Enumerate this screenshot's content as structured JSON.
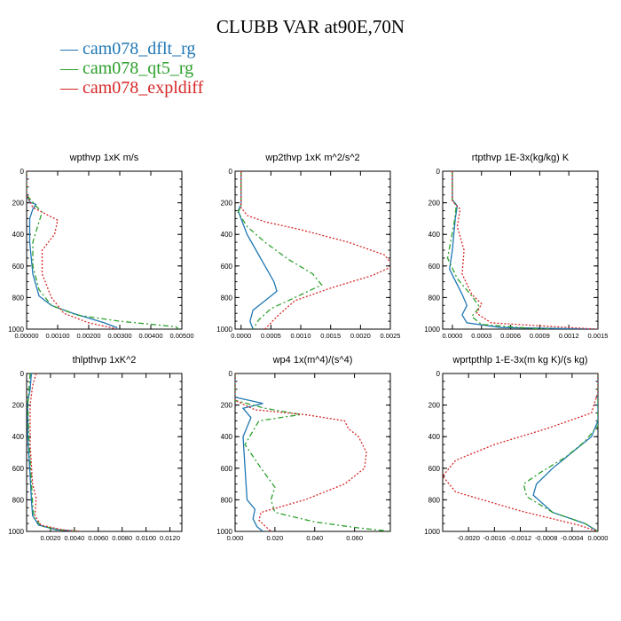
{
  "figure_title": "CLUBB VAR at90E,70N",
  "legend": [
    {
      "label": "cam078_dflt_rg",
      "color": "#1f77b4",
      "dash": "solid"
    },
    {
      "label": "cam078_qt5_rg",
      "color": "#2ca02c",
      "dash": "dashdot"
    },
    {
      "label": "cam078_expldiff",
      "color": "#d62728",
      "dash": "dotted"
    }
  ],
  "chart_data": [
    {
      "type": "line",
      "title": "wpthvp  1xK m/s",
      "xlim": [
        0.0,
        0.005
      ],
      "ylim": [
        0,
        1000
      ],
      "xticks": [
        "0.00000",
        "0.00100",
        "0.00200",
        "0.00300",
        "0.00400",
        "0.00500"
      ],
      "xtick_values": [
        0,
        0.001,
        0.002,
        0.003,
        0.004,
        0.005
      ],
      "yticks": [
        "0",
        "200",
        "400",
        "600",
        "800",
        "1000"
      ],
      "ytick_values": [
        0,
        200,
        400,
        600,
        800,
        1000
      ],
      "series": [
        {
          "name": "cam078_dflt_rg",
          "x": [
            0,
            0,
            0.0001,
            0.0003,
            0.0002,
            0.0001,
            0.0001,
            0.0002,
            0.0004,
            0.0008,
            0.0015,
            0.0025,
            0.0029,
            0.0029
          ],
          "y": [
            0,
            150,
            195,
            210,
            240,
            300,
            450,
            650,
            790,
            850,
            900,
            960,
            990,
            1000
          ]
        },
        {
          "name": "cam078_qt5_rg",
          "x": [
            0,
            0,
            0.0003,
            0.0005,
            0.0004,
            0.0002,
            0.0002,
            0.0004,
            0.0008,
            0.0016,
            0.003,
            0.0048,
            0.0049
          ],
          "y": [
            0,
            150,
            220,
            260,
            320,
            450,
            600,
            750,
            850,
            910,
            950,
            985,
            1000
          ]
        },
        {
          "name": "cam078_expldiff",
          "x": [
            0,
            0,
            0.0002,
            0.0007,
            0.001,
            0.0009,
            0.0005,
            0.0005,
            0.0008,
            0.0012,
            0.002,
            0.0027,
            0.0029
          ],
          "y": [
            0,
            150,
            230,
            280,
            310,
            400,
            500,
            650,
            800,
            900,
            960,
            990,
            1000
          ]
        }
      ]
    },
    {
      "type": "line",
      "title": "wp2thvp  1xK m^2/s^2",
      "xlim": [
        -0.0001,
        0.0025
      ],
      "ylim": [
        0,
        1000
      ],
      "xticks": [
        "0.0000",
        "0.0005",
        "0.0010",
        "0.0015",
        "0.0020",
        "0.0025"
      ],
      "xtick_values": [
        0,
        0.0005,
        0.001,
        0.0015,
        0.002,
        0.0025
      ],
      "yticks": [
        "0",
        "200",
        "400",
        "600",
        "800",
        "1000"
      ],
      "ytick_values": [
        0,
        200,
        400,
        600,
        800,
        1000
      ],
      "series": [
        {
          "name": "cam078_dflt_rg",
          "x": [
            0,
            0,
            -5e-05,
            0,
            0.0001,
            0.00025,
            0.0004,
            0.00055,
            0.0006,
            0.0004,
            0.0002,
            0.00015,
            0.0002
          ],
          "y": [
            0,
            210,
            250,
            300,
            400,
            500,
            600,
            700,
            760,
            820,
            880,
            950,
            1000
          ]
        },
        {
          "name": "cam078_qt5_rg",
          "x": [
            0,
            0,
            -5e-05,
            0.0001,
            0.0004,
            0.0008,
            0.0012,
            0.00135,
            0.0009,
            0.0005,
            0.0003,
            0.0002
          ],
          "y": [
            0,
            220,
            260,
            350,
            450,
            560,
            650,
            720,
            800,
            870,
            940,
            1000
          ]
        },
        {
          "name": "cam078_expldiff",
          "x": [
            0,
            0,
            0.0001,
            0.0004,
            0.001,
            0.0018,
            0.0024,
            0.00255,
            0.0022,
            0.0015,
            0.0009,
            0.0006,
            0.0004
          ],
          "y": [
            0,
            230,
            280,
            320,
            370,
            450,
            530,
            600,
            660,
            740,
            820,
            920,
            1000
          ]
        }
      ]
    },
    {
      "type": "line",
      "title": "rtpthvp  1E-3x(kg/kg) K",
      "xlim": [
        -0.0001,
        0.0015
      ],
      "ylim": [
        0,
        1000
      ],
      "xticks": [
        "0.0000",
        "0.0003",
        "0.0006",
        "0.0009",
        "0.0012",
        "0.0015"
      ],
      "xtick_values": [
        0,
        0.0003,
        0.0006,
        0.0009,
        0.0012,
        0.0015
      ],
      "yticks": [
        "0",
        "200",
        "400",
        "600",
        "800",
        "1000"
      ],
      "ytick_values": [
        0,
        200,
        400,
        600,
        800,
        1000
      ],
      "series": [
        {
          "name": "cam078_dflt_rg",
          "x": [
            0,
            0,
            5e-05,
            3e-05,
            0,
            -3e-05,
            0.0001,
            0.00015,
            0.0001,
            0.00015,
            0.0005,
            0.0015
          ],
          "y": [
            0,
            180,
            220,
            300,
            500,
            620,
            780,
            850,
            910,
            960,
            990,
            1000
          ]
        },
        {
          "name": "cam078_qt5_rg",
          "x": [
            0,
            0,
            4e-05,
            2e-05,
            -5e-05,
            5e-05,
            0.0002,
            0.00028,
            0.0002,
            0.0003,
            0.0008,
            0.001
          ],
          "y": [
            0,
            180,
            220,
            320,
            550,
            680,
            790,
            860,
            920,
            970,
            995,
            1000
          ]
        },
        {
          "name": "cam078_expldiff",
          "x": [
            0,
            0,
            8e-05,
            5e-05,
            0.00012,
            0.0001,
            0.0002,
            0.0003,
            0.00025,
            0.0004,
            0.0012,
            0.0015
          ],
          "y": [
            0,
            190,
            240,
            350,
            500,
            650,
            780,
            840,
            900,
            960,
            990,
            1000
          ]
        }
      ]
    },
    {
      "type": "line",
      "title": "thlpthvp  1xK^2",
      "xlim": [
        0.0,
        0.013
      ],
      "ylim": [
        0,
        1000
      ],
      "xticks": [
        "0.0020",
        "0.0040",
        "0.0060",
        "0.0080",
        "0.0100",
        "0.0120"
      ],
      "xtick_values": [
        0.002,
        0.004,
        0.006,
        0.008,
        0.01,
        0.012
      ],
      "yticks": [
        "0",
        "200",
        "400",
        "600",
        "800",
        "1000"
      ],
      "ytick_values": [
        0,
        200,
        400,
        600,
        800,
        1000
      ],
      "series": [
        {
          "name": "cam078_dflt_rg",
          "x": [
            0.0004,
            0.0003,
            0.0001,
            0.0001,
            0.0003,
            0.0004,
            0.0005,
            0.001,
            0.0025,
            0.0045
          ],
          "y": [
            0,
            100,
            180,
            400,
            650,
            800,
            900,
            960,
            990,
            1000
          ]
        },
        {
          "name": "cam078_qt5_rg",
          "x": [
            0.0003,
            0.0002,
            0.0001,
            0.0002,
            0.0004,
            0.0005,
            0.0006,
            0.0012,
            0.0028,
            0.0045
          ],
          "y": [
            0,
            100,
            200,
            420,
            680,
            820,
            910,
            965,
            990,
            1000
          ]
        },
        {
          "name": "cam078_expldiff",
          "x": [
            0.0008,
            0.0005,
            0.0003,
            0.0003,
            0.0005,
            0.0008,
            0.0007,
            0.0012,
            0.003,
            0.0045
          ],
          "y": [
            0,
            80,
            200,
            450,
            700,
            790,
            900,
            960,
            990,
            1000
          ]
        }
      ]
    },
    {
      "type": "line",
      "title": "wp4  1x(m^4)/(s^4)",
      "xlim": [
        0.0,
        0.078
      ],
      "ylim": [
        0,
        1000
      ],
      "xticks": [
        "0.000",
        "0.020",
        "0.040",
        "0.060"
      ],
      "xtick_values": [
        0,
        0.02,
        0.04,
        0.06
      ],
      "yticks": [
        "0",
        "200",
        "400",
        "600",
        "800",
        "1000"
      ],
      "ytick_values": [
        0,
        200,
        400,
        600,
        800,
        1000
      ],
      "series": [
        {
          "name": "cam078_dflt_rg",
          "x": [
            0,
            0,
            0.014,
            0.004,
            0.008,
            0.004,
            0.005,
            0.006,
            0.01,
            0.009,
            0.011,
            0.014
          ],
          "y": [
            0,
            150,
            190,
            220,
            280,
            400,
            600,
            800,
            860,
            920,
            970,
            1000
          ]
        },
        {
          "name": "cam078_qt5_rg",
          "x": [
            0,
            0,
            0.015,
            0.033,
            0.012,
            0.005,
            0.013,
            0.02,
            0.018,
            0.02,
            0.04,
            0.06,
            0.078
          ],
          "y": [
            0,
            170,
            220,
            260,
            300,
            450,
            600,
            720,
            800,
            880,
            940,
            975,
            1000
          ]
        },
        {
          "name": "cam078_expldiff",
          "x": [
            0,
            0,
            0.01,
            0.035,
            0.055,
            0.057,
            0.062,
            0.066,
            0.065,
            0.055,
            0.035,
            0.013,
            0.012,
            0.018
          ],
          "y": [
            0,
            170,
            230,
            260,
            300,
            350,
            400,
            500,
            600,
            700,
            800,
            880,
            930,
            1000
          ]
        }
      ]
    },
    {
      "type": "line",
      "title": "wprtpthlp  1-E-3x(m kg K)/(s kg)",
      "xlim": [
        -0.0024,
        0.0
      ],
      "ylim": [
        0,
        1000
      ],
      "xticks": [
        "-0.0020",
        "-0.0016",
        "-0.0012",
        "-0.0008",
        "-0.0004",
        "0.0000"
      ],
      "xtick_values": [
        -0.002,
        -0.0016,
        -0.0012,
        -0.0008,
        -0.0004,
        0
      ],
      "yticks": [
        "0",
        "200",
        "400",
        "600",
        "800",
        "1000"
      ],
      "ytick_values": [
        0,
        200,
        400,
        600,
        800,
        1000
      ],
      "series": [
        {
          "name": "cam078_dflt_rg",
          "x": [
            0,
            0,
            -0.0001,
            -0.0004,
            -0.0007,
            -0.00095,
            -0.001,
            -0.0007,
            -0.0002,
            0
          ],
          "y": [
            0,
            300,
            400,
            500,
            600,
            700,
            770,
            880,
            950,
            1000
          ]
        },
        {
          "name": "cam078_qt5_rg",
          "x": [
            0,
            0,
            -0.0002,
            -0.0005,
            -0.0009,
            -0.00115,
            -0.0011,
            -0.0007,
            -0.0002,
            0
          ],
          "y": [
            0,
            330,
            430,
            530,
            630,
            700,
            780,
            880,
            950,
            1000
          ]
        },
        {
          "name": "cam078_expldiff",
          "x": [
            0,
            0,
            -0.0001,
            -0.0008,
            -0.0016,
            -0.0022,
            -0.0024,
            -0.0022,
            -0.0012,
            -0.0003,
            0
          ],
          "y": [
            0,
            120,
            250,
            350,
            450,
            550,
            650,
            750,
            870,
            960,
            1000
          ]
        }
      ]
    }
  ]
}
